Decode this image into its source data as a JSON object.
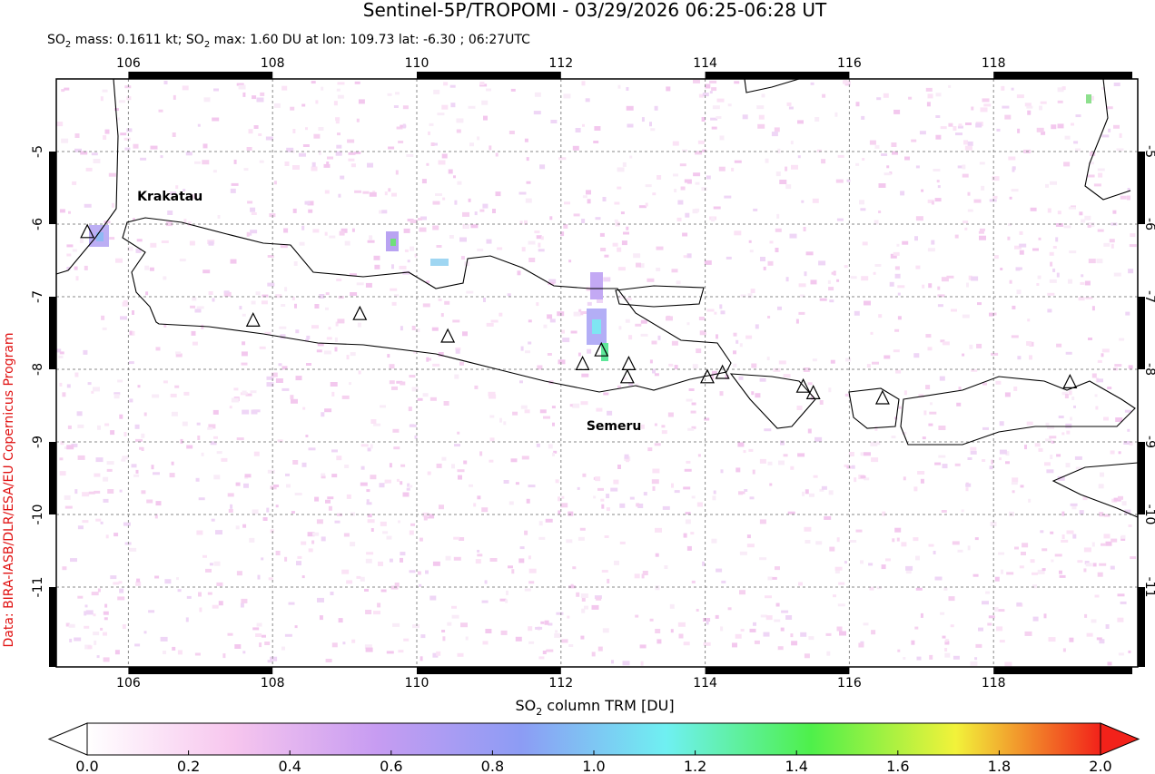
{
  "title": "Sentinel-5P/TROPOMI - 03/29/2026 06:25-06:28 UT",
  "subtitle": [
    "SO",
    "2",
    " mass: 0.1611 kt; SO",
    "2",
    " max: 1.60 DU at lon: 109.73 lat: -6.30 ; 06:27UTC"
  ],
  "credit": "Data: BIRA-IASB/DLR/ESA/EU Copernicus Program",
  "map": {
    "lonlim": [
      105,
      120
    ],
    "latlim": [
      -4,
      -12.1
    ],
    "lonticks": [
      106,
      108,
      110,
      112,
      114,
      116,
      118
    ],
    "latticks": [
      -5,
      -6,
      -7,
      -8,
      -9,
      -10,
      -11
    ],
    "grid": true,
    "volcanoes": [
      {
        "name": "Krakatau",
        "lon": 105.43,
        "lat": -6.11
      },
      {
        "name": "Semeru",
        "lon": 112.92,
        "lat": -8.11
      }
    ],
    "markers": [
      {
        "lon": 107.73,
        "lat": -7.33
      },
      {
        "lon": 109.21,
        "lat": -7.24
      },
      {
        "lon": 110.43,
        "lat": -7.55
      },
      {
        "lon": 112.3,
        "lat": -7.93
      },
      {
        "lon": 112.56,
        "lat": -7.74
      },
      {
        "lon": 112.94,
        "lat": -7.93
      },
      {
        "lon": 114.03,
        "lat": -8.11
      },
      {
        "lon": 114.24,
        "lat": -8.05
      },
      {
        "lon": 115.36,
        "lat": -8.24
      },
      {
        "lon": 115.5,
        "lat": -8.33
      },
      {
        "lon": 116.46,
        "lat": -8.4
      },
      {
        "lon": 119.06,
        "lat": -8.18
      }
    ]
  },
  "colorbar": {
    "label": [
      "SO",
      "2",
      " column TRM [DU]"
    ],
    "range": [
      0,
      2
    ],
    "colors": [
      "#ffffff",
      "#f7c6ee",
      "#c79cf2",
      "#8c9cf4",
      "#6ff0f2",
      "#4ef04a",
      "#f2f23a",
      "#f2221a"
    ],
    "ticks": [
      {
        "value": 0,
        "label": "0.0"
      },
      {
        "value": 0.2,
        "label": "0.2"
      },
      {
        "value": 0.4,
        "label": "0.4"
      },
      {
        "value": 0.6,
        "label": "0.6"
      },
      {
        "value": 0.8,
        "label": "0.8"
      },
      {
        "value": 1,
        "label": "1.0"
      },
      {
        "value": 1.2,
        "label": "1.2"
      },
      {
        "value": 1.4,
        "label": "1.4"
      },
      {
        "value": 1.6,
        "label": "1.6"
      },
      {
        "value": 1.8,
        "label": "1.8"
      },
      {
        "value": 2,
        "label": "2.0"
      }
    ]
  }
}
